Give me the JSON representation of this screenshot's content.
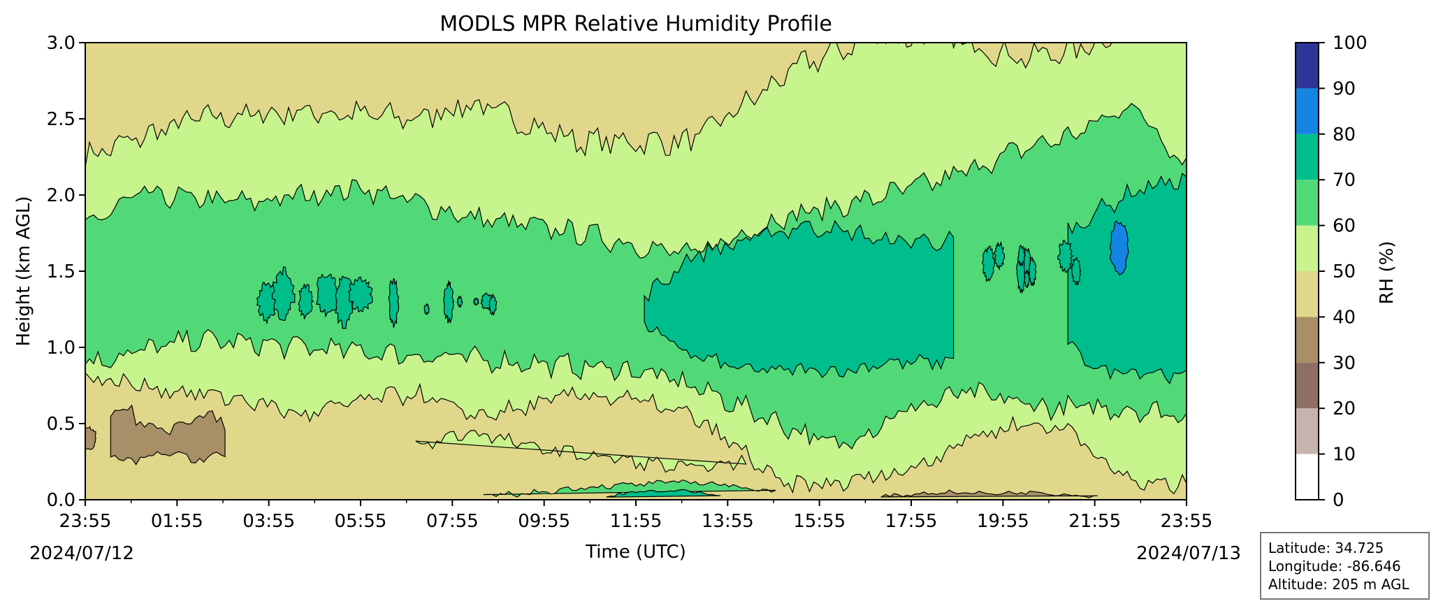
{
  "chart_data": {
    "type": "heatmap",
    "subtype": "filled-contour",
    "title": "MODLS MPR Relative Humidity Profile",
    "xlabel": "Time (UTC)",
    "ylabel": "Height (km AGL)",
    "x_ticks": [
      "23:55",
      "01:55",
      "03:55",
      "05:55",
      "07:55",
      "09:55",
      "11:55",
      "13:55",
      "15:55",
      "17:55",
      "19:55",
      "21:55",
      "23:55"
    ],
    "x_start_date": "2024/07/12",
    "x_end_date": "2024/07/13",
    "y_ticks": [
      "0.0",
      "0.5",
      "1.0",
      "1.5",
      "2.0",
      "2.5",
      "3.0"
    ],
    "ylim": [
      0,
      3.0
    ],
    "colorbar": {
      "label": "RH (%)",
      "ticks": [
        "0",
        "10",
        "20",
        "30",
        "40",
        "50",
        "60",
        "70",
        "80",
        "90",
        "100"
      ],
      "colors": [
        "#ffffff",
        "#c7b3ad",
        "#8e6f63",
        "#a88f67",
        "#e1d78b",
        "#c8f48e",
        "#52d977",
        "#00be8c",
        "#1485e3",
        "#2e3598"
      ]
    },
    "rh_bands": [
      {
        "range": "60-70",
        "region": "broad moist layer ~1.0-2.0 km across entire period"
      },
      {
        "range": "70-80",
        "region": "~1.0-1.8 km from 11:55 to 18:00 and 21:30-23:55; patches 03:55-06:55"
      },
      {
        "range": "80-90",
        "region": "small pocket ~1.5-1.8 km near 22:00"
      },
      {
        "range": "50-60",
        "region": "upper layer 2.0-2.7 km and near-surface 0.5-0.9 km"
      },
      {
        "range": "40-50",
        "region": "top of profile 2.4-3.0 km (00:00-13:30) and surface layer"
      },
      {
        "range": "30-40",
        "region": "near-surface pockets 0.3-0.6 km at 00:00-02:30"
      }
    ]
  },
  "info": {
    "latitude": "Latitude: 34.725",
    "longitude": "Longitude: -86.646",
    "altitude": "Altitude: 205 m AGL"
  }
}
